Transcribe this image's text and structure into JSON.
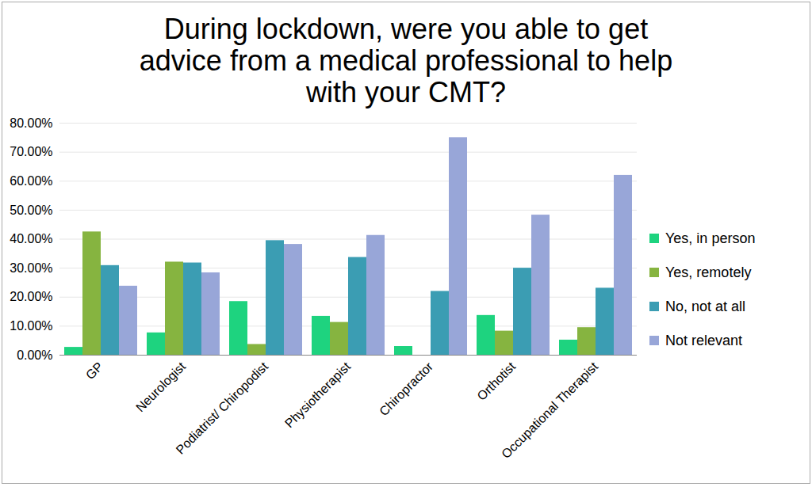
{
  "chart_data": {
    "type": "bar",
    "title": "During lockdown, were you able to get advice from a medical professional to help with your CMT?",
    "categories": [
      "GP",
      "Neurologist",
      "Podiatrist/ Chiropodist",
      "Physiotherapist",
      "Chiropractor",
      "Orthotist",
      "Occupational Therapist"
    ],
    "series": [
      {
        "name": "Yes, in person",
        "color": "#1ed37f",
        "values": [
          2.7,
          7.7,
          18.5,
          13.4,
          3.0,
          13.7,
          5.2
        ]
      },
      {
        "name": "Yes, remotely",
        "color": "#86b440",
        "values": [
          42.5,
          32.1,
          3.7,
          11.3,
          0,
          8.3,
          9.5
        ]
      },
      {
        "name": "No, not at all",
        "color": "#3b9db3",
        "values": [
          30.9,
          31.8,
          39.5,
          33.7,
          22.0,
          30.0,
          23.1
        ]
      },
      {
        "name": "Not relevant",
        "color": "#98a6d8",
        "values": [
          23.8,
          28.4,
          38.2,
          41.3,
          75.0,
          48.3,
          62.0
        ]
      }
    ],
    "ylim": [
      0,
      80
    ],
    "yticks": [
      {
        "value": 0,
        "label": "0.00%"
      },
      {
        "value": 10,
        "label": "10.00%"
      },
      {
        "value": 20,
        "label": "20.00%"
      },
      {
        "value": 30,
        "label": "30.00%"
      },
      {
        "value": 40,
        "label": "40.00%"
      },
      {
        "value": 50,
        "label": "50.00%"
      },
      {
        "value": 60,
        "label": "60.00%"
      },
      {
        "value": 70,
        "label": "70.00%"
      },
      {
        "value": 80,
        "label": "80.00%"
      }
    ],
    "grid": true,
    "legend": "right"
  }
}
